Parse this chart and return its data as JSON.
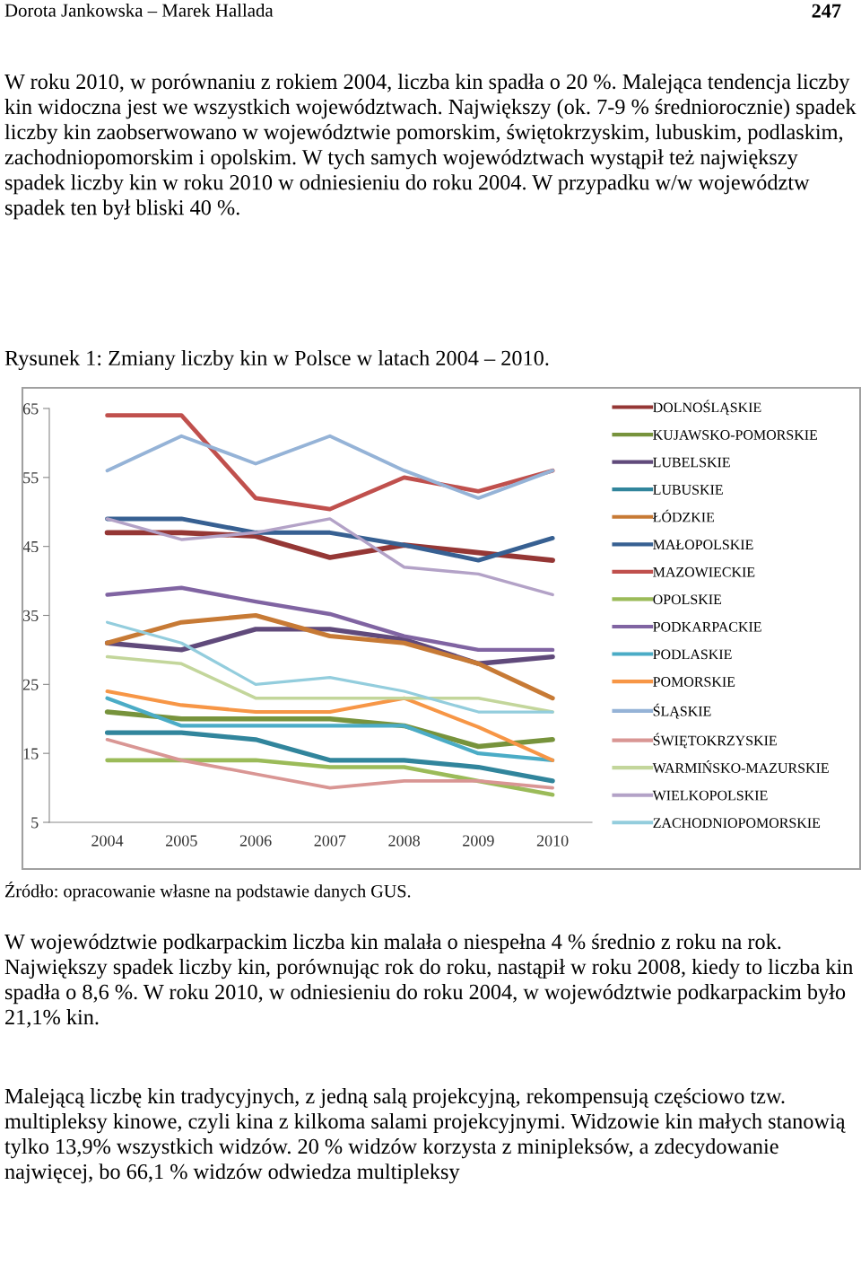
{
  "chart_data": {
    "type": "line",
    "title": "Rysunek 1: Zmiany liczby kin w Polsce w latach 2004 – 2010.",
    "annotations": [
      "Dorota Jankowska – Marek Hallada",
      "247",
      "W roku 2010, w porównaniu z rokiem 2004, liczba kin spadła o 20 %. Malejąca tendencja liczby kin widoczna jest we wszystkich województwach. Największy (ok. 7-9 % średniorocznie) spadek liczby kin zaobserwowano w województwie pomorskim, świętokrzyskim, lubuskim, podlaskim, zachodniopomorskim i opolskim. W tych samych województwach wystąpił też największy spadek liczby kin w roku 2010 w odniesieniu do roku 2004. W przypadku w/w województw spadek ten był bliski 40 %.",
      "Źródło: opracowanie własne na podstawie danych GUS.",
      "W województwie podkarpackim liczba kin malała o niespełna 4 % średnio z roku na rok. Największy spadek liczby kin, porównując rok do roku, nastąpił w roku 2008, kiedy to liczba kin spadła o 8,6 %. W roku 2010, w odniesieniu do roku 2004, w województwie podkarpackim było 21,1% kin.",
      "Malejącą liczbę kin tradycyjnych, z jedną salą projekcyjną, rekompensują częściowo tzw. multipleksy kinowe, czyli kina z kilkoma salami projekcyjnymi. Widzowie kin małych stanowią tylko 13,9% wszystkich widzów. 20 % widzów korzysta z minipleksów, a zdecydowanie najwięcej, bo 66,1 % widzów odwiedza multipleksy"
    ],
    "categories": [
      "2004",
      "2005",
      "2006",
      "2007",
      "2008",
      "2009",
      "2010"
    ],
    "ylim": [
      5,
      65
    ],
    "yticks": [
      5,
      15,
      25,
      35,
      45,
      55,
      65
    ],
    "grid": false,
    "legend": "right",
    "series": [
      {
        "name": "DOLNOŚLĄSKIE",
        "color": "#953735",
        "values": [
          47,
          47,
          46.5,
          43.4,
          45.2,
          44.1,
          43
        ]
      },
      {
        "name": "KUJAWSKO-POMORSKIE",
        "color": "#77933c",
        "values": [
          21,
          20,
          20,
          20,
          19,
          16,
          17
        ]
      },
      {
        "name": "LUBELSKIE",
        "color": "#604a7b",
        "values": [
          31,
          30,
          33,
          33,
          31.5,
          28,
          29
        ]
      },
      {
        "name": "LUBUSKIE",
        "color": "#31859c",
        "values": [
          18,
          18,
          17,
          14,
          14,
          13,
          11
        ]
      },
      {
        "name": "ŁÓDZKIE",
        "color": "#c77a35",
        "values": [
          31,
          34,
          35,
          32,
          31,
          28,
          23
        ]
      },
      {
        "name": "MAŁOPOLSKIE",
        "color": "#376092",
        "values": [
          49,
          49,
          47,
          47,
          45.2,
          43,
          46.2
        ]
      },
      {
        "name": "MAZOWIECKIE",
        "color": "#c0504d",
        "values": [
          64,
          64,
          52,
          50.4,
          55,
          53,
          56
        ]
      },
      {
        "name": "OPOLSKIE",
        "color": "#9bbb59",
        "values": [
          14,
          14,
          14,
          13,
          13,
          11,
          9
        ]
      },
      {
        "name": "PODKARPACKIE",
        "color": "#8064a2",
        "values": [
          38,
          39,
          37,
          35.2,
          32,
          30,
          30
        ]
      },
      {
        "name": "PODLASKIE",
        "color": "#4bacc6",
        "values": [
          23,
          19,
          19,
          19,
          19,
          15,
          14
        ]
      },
      {
        "name": "POMORSKIE",
        "color": "#f79646",
        "values": [
          24,
          22,
          21,
          21,
          23,
          18.8,
          14
        ]
      },
      {
        "name": "ŚLĄSKIE",
        "color": "#95b3d7",
        "values": [
          56,
          61,
          57,
          61,
          56,
          52,
          56
        ]
      },
      {
        "name": "ŚWIĘTOKRZYSKIE",
        "color": "#d99694",
        "values": [
          17,
          14,
          12,
          10,
          11,
          11,
          10
        ]
      },
      {
        "name": "WARMIŃSKO-MAZURSKIE",
        "color": "#c3d69b",
        "values": [
          29,
          28,
          23,
          23,
          23,
          23,
          21
        ]
      },
      {
        "name": "WIELKOPOLSKIE",
        "color": "#b3a2c7",
        "values": [
          49,
          46,
          47,
          49,
          42,
          41,
          38
        ]
      },
      {
        "name": "ZACHODNIOPOMORSKIE",
        "color": "#93cddd",
        "values": [
          34,
          31,
          25,
          26,
          24,
          21,
          21
        ]
      }
    ]
  }
}
